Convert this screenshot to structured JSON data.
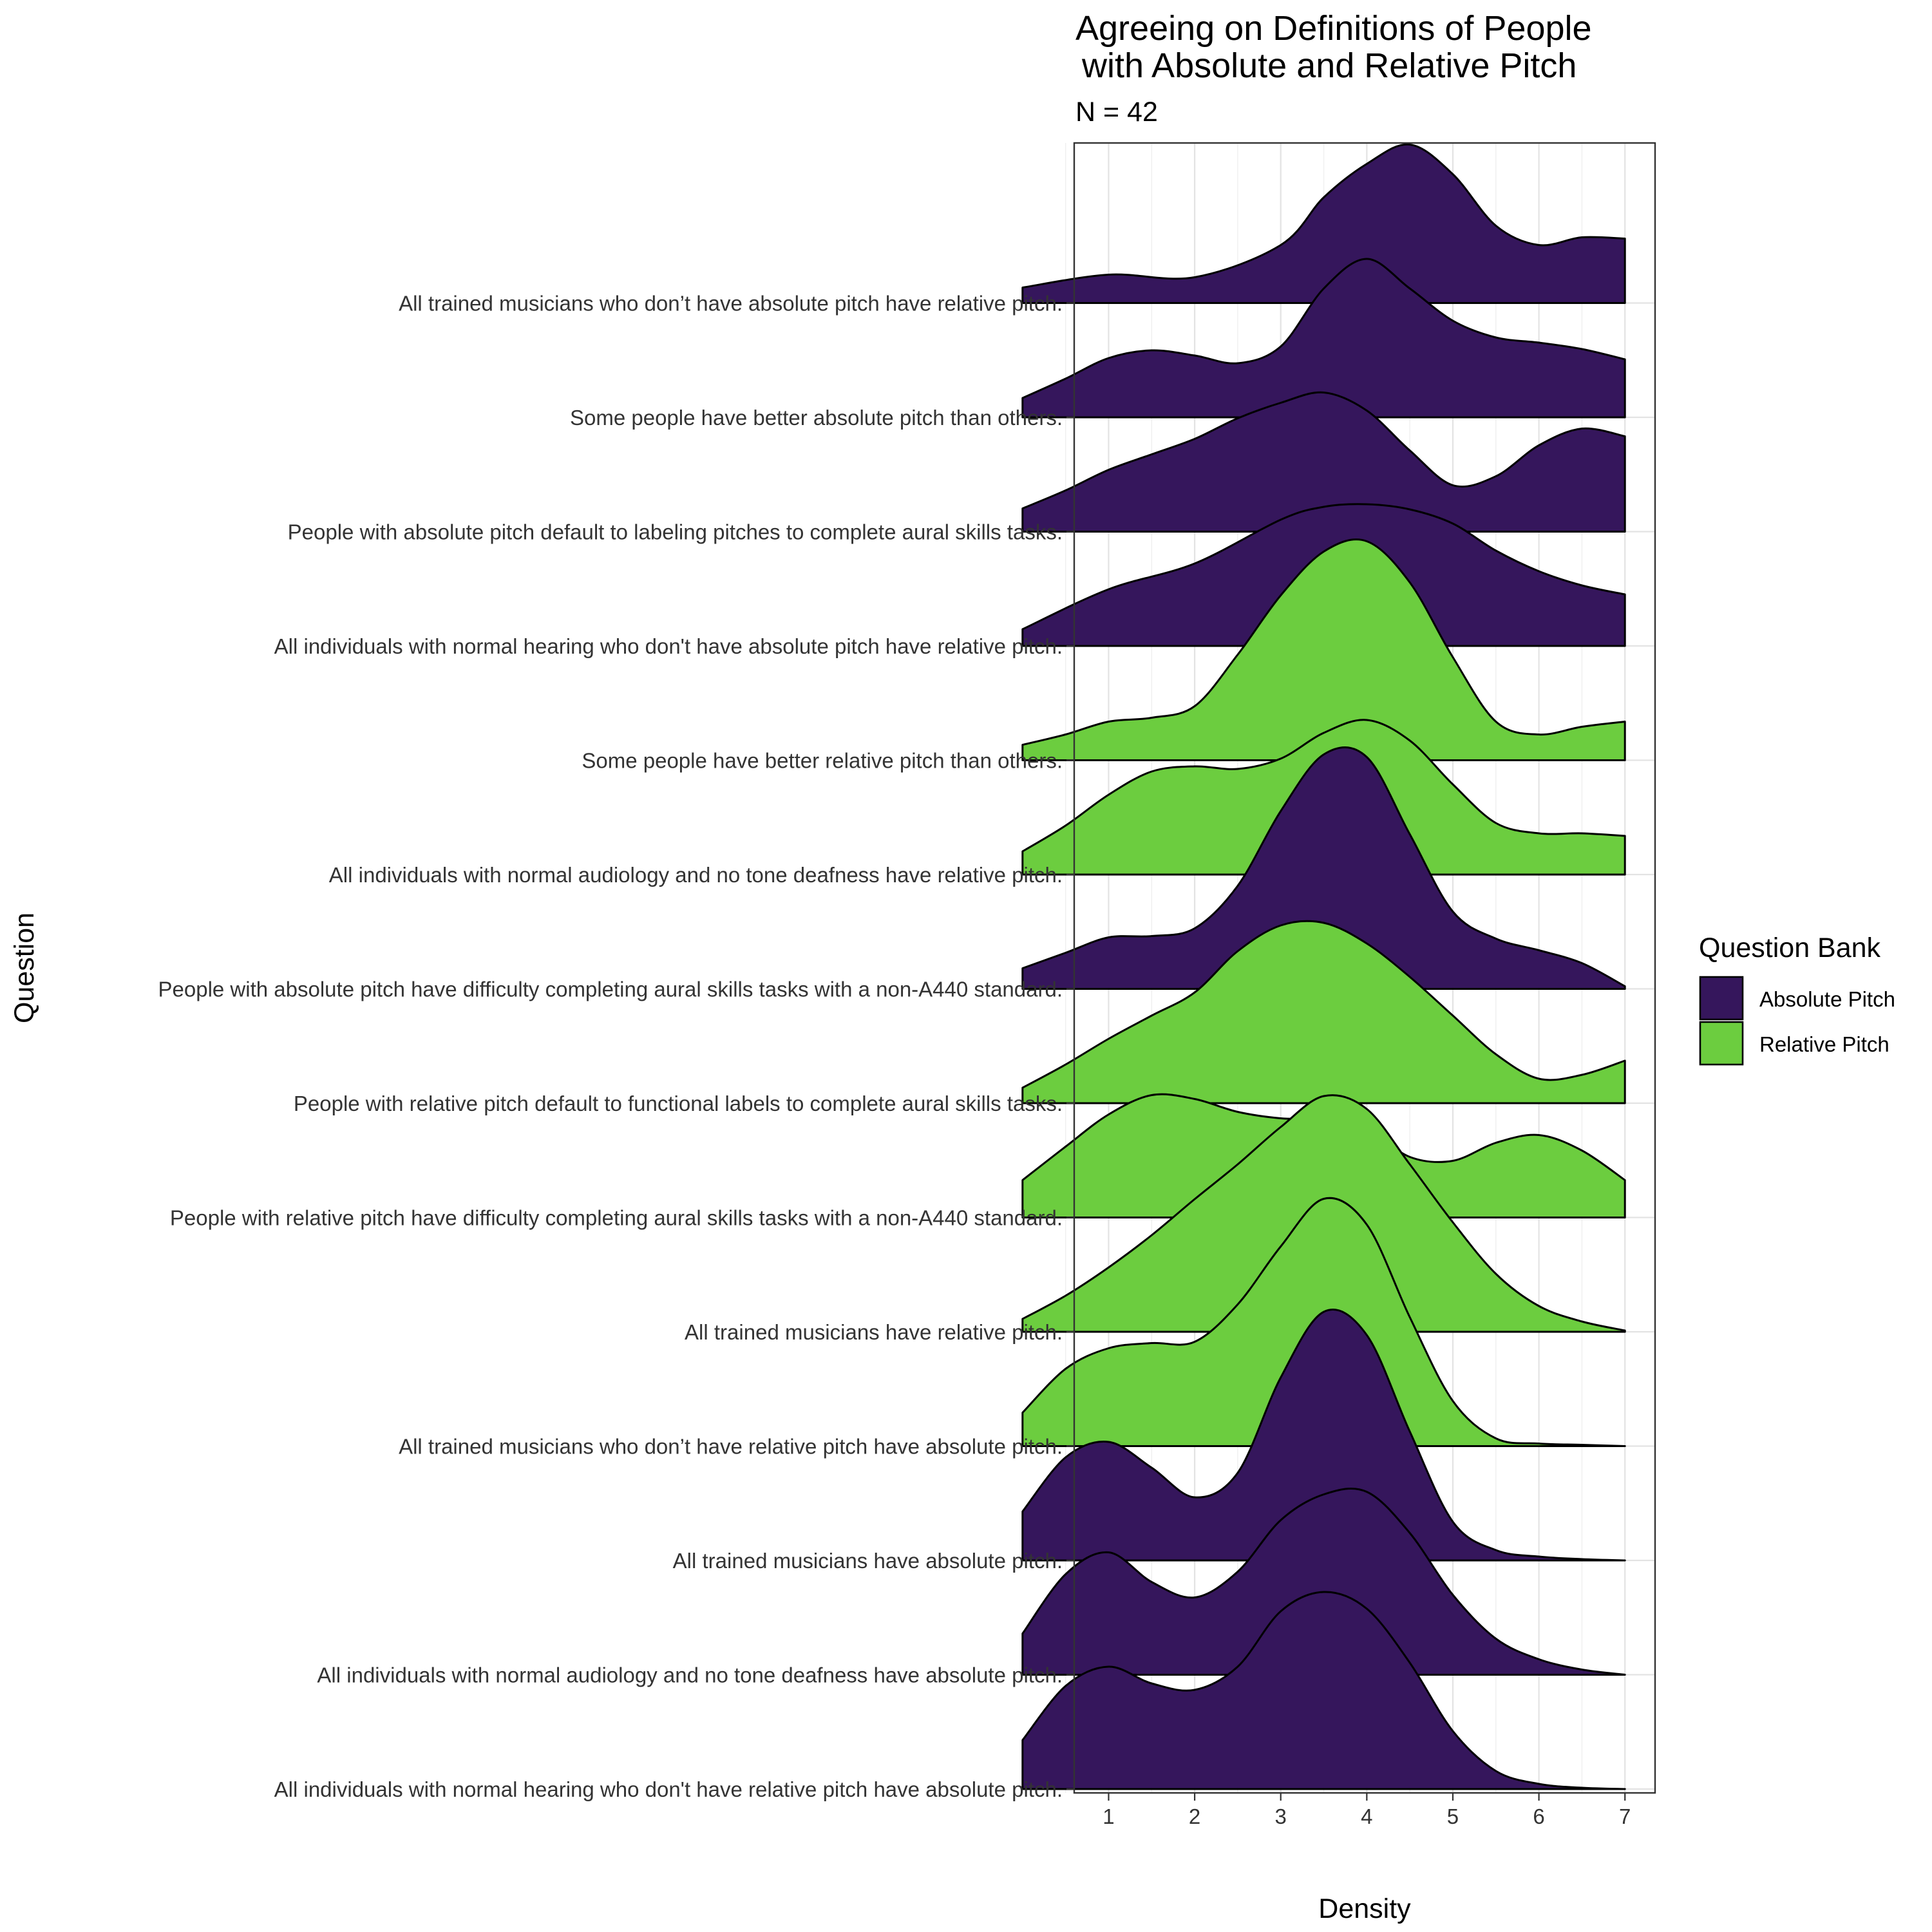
{
  "chart_data": {
    "type": "ridgeline",
    "title_lines": [
      "Agreeing on Definitions of People",
      "with Absolute and Relative Pitch"
    ],
    "subtitle": "N = 42",
    "xlabel": "Density",
    "ylabel": "Question",
    "xlim": [
      0.6,
      7.35
    ],
    "xticks": [
      1,
      2,
      3,
      4,
      5,
      6,
      7
    ],
    "grid": true,
    "legend": {
      "title": "Question Bank",
      "position": "right",
      "items": [
        {
          "label": "Absolute Pitch",
          "color": "#35165c"
        },
        {
          "label": "Relative Pitch",
          "color": "#6ccd3f"
        }
      ]
    },
    "series": [
      {
        "label": "All trained musicians who don’t have absolute pitch have relative pitch.",
        "bank": "Absolute Pitch",
        "x": [
          0,
          1,
          2,
          3,
          3.5,
          4,
          4.5,
          5,
          5.5,
          6,
          6.5,
          7
        ],
        "density": [
          0.12,
          0.22,
          0.2,
          0.45,
          0.82,
          1.08,
          1.23,
          1.0,
          0.6,
          0.45,
          0.51,
          0.5
        ]
      },
      {
        "label": "Some people have better absolute pitch than others.",
        "bank": "Absolute Pitch",
        "x": [
          0,
          0.5,
          1,
          1.5,
          2,
          2.5,
          3,
          3.5,
          4,
          4.5,
          5,
          5.5,
          6,
          6.5,
          7
        ],
        "density": [
          0.15,
          0.3,
          0.46,
          0.52,
          0.48,
          0.42,
          0.55,
          1.0,
          1.23,
          1.0,
          0.75,
          0.62,
          0.58,
          0.53,
          0.45
        ]
      },
      {
        "label": "People with absolute pitch default to labeling pitches to complete aural skills tasks.",
        "bank": "Absolute Pitch",
        "x": [
          0,
          0.5,
          1,
          1.5,
          2,
          2.5,
          3,
          3.5,
          4,
          4.5,
          5,
          5.5,
          6,
          6.5,
          7
        ],
        "density": [
          0.18,
          0.32,
          0.48,
          0.6,
          0.72,
          0.88,
          1.0,
          1.08,
          0.94,
          0.63,
          0.36,
          0.43,
          0.67,
          0.8,
          0.74
        ]
      },
      {
        "label": "All individuals with normal hearing who don't have absolute pitch have relative pitch.",
        "bank": "Absolute Pitch",
        "x": [
          0,
          1,
          2,
          3,
          3.5,
          4,
          4.5,
          5,
          5.5,
          6,
          6.5,
          7
        ],
        "density": [
          0.13,
          0.44,
          0.64,
          0.98,
          1.08,
          1.1,
          1.06,
          0.95,
          0.74,
          0.58,
          0.47,
          0.4
        ]
      },
      {
        "label": "Some people have better relative pitch than others.",
        "bank": "Relative Pitch",
        "x": [
          0,
          0.5,
          1,
          1.5,
          2,
          2.5,
          3,
          3.5,
          4,
          4.5,
          5,
          5.5,
          6,
          6.5,
          7
        ],
        "density": [
          0.12,
          0.2,
          0.3,
          0.33,
          0.42,
          0.82,
          1.28,
          1.62,
          1.7,
          1.38,
          0.8,
          0.3,
          0.2,
          0.26,
          0.3
        ]
      },
      {
        "label": "All individuals with normal audiology and no tone deafness have relative pitch.",
        "bank": "Relative Pitch",
        "x": [
          0,
          0.5,
          1,
          1.5,
          2,
          2.5,
          3,
          3.5,
          4,
          4.5,
          5,
          5.5,
          6,
          6.5,
          7
        ],
        "density": [
          0.18,
          0.38,
          0.62,
          0.8,
          0.84,
          0.82,
          0.9,
          1.1,
          1.2,
          1.04,
          0.7,
          0.4,
          0.32,
          0.32,
          0.3
        ]
      },
      {
        "label": "People with absolute pitch have difficulty completing aural skills tasks with a non-A440 standard.",
        "bank": "Absolute Pitch",
        "x": [
          0,
          0.5,
          1,
          1.5,
          2,
          2.5,
          3,
          3.5,
          4,
          4.5,
          5,
          5.5,
          6,
          6.5,
          7
        ],
        "density": [
          0.16,
          0.28,
          0.4,
          0.41,
          0.47,
          0.8,
          1.38,
          1.82,
          1.8,
          1.2,
          0.6,
          0.39,
          0.3,
          0.2,
          0.02
        ]
      },
      {
        "label": "People with relative pitch default to functional labels to complete aural skills tasks.",
        "bank": "Relative Pitch",
        "x": [
          0,
          0.5,
          1,
          1.5,
          2,
          2.5,
          3,
          3.5,
          4,
          4.5,
          5,
          5.5,
          6,
          6.5,
          7
        ],
        "density": [
          0.12,
          0.3,
          0.5,
          0.68,
          0.86,
          1.18,
          1.38,
          1.4,
          1.24,
          0.98,
          0.68,
          0.38,
          0.19,
          0.22,
          0.33
        ]
      },
      {
        "label": "People with relative pitch have difficulty completing aural skills tasks with a non-A440 standard.",
        "bank": "Relative Pitch",
        "x": [
          0,
          0.5,
          1,
          1.5,
          2,
          2.5,
          3,
          3.5,
          4,
          4.5,
          5,
          5.5,
          6,
          6.5,
          7
        ],
        "density": [
          0.29,
          0.55,
          0.8,
          0.95,
          0.92,
          0.82,
          0.77,
          0.76,
          0.69,
          0.47,
          0.44,
          0.58,
          0.64,
          0.52,
          0.29
        ]
      },
      {
        "label": "All trained musicians have relative pitch.",
        "bank": "Relative Pitch",
        "x": [
          0,
          0.5,
          1,
          1.5,
          2,
          2.5,
          3,
          3.5,
          4,
          4.5,
          5,
          5.5,
          6,
          6.5,
          7
        ],
        "density": [
          0.1,
          0.28,
          0.5,
          0.75,
          1.03,
          1.3,
          1.59,
          1.83,
          1.73,
          1.3,
          0.85,
          0.45,
          0.2,
          0.08,
          0.01
        ]
      },
      {
        "label": "All trained musicians who don’t have relative pitch have absolute pitch.",
        "bank": "Relative Pitch",
        "x": [
          0,
          0.5,
          1,
          1.5,
          2,
          2.5,
          3,
          3.5,
          4,
          4.5,
          5,
          5.5,
          6,
          6.5,
          7
        ],
        "density": [
          0.26,
          0.6,
          0.76,
          0.8,
          0.81,
          1.1,
          1.55,
          1.92,
          1.72,
          1.0,
          0.35,
          0.06,
          0.02,
          0.01,
          0.0
        ]
      },
      {
        "label": "All trained musicians have absolute pitch.",
        "bank": "Absolute Pitch",
        "x": [
          0,
          0.5,
          1,
          1.5,
          2,
          2.5,
          3,
          3.5,
          4,
          4.5,
          5,
          5.5,
          6,
          6.5,
          7
        ],
        "density": [
          0.38,
          0.8,
          0.92,
          0.72,
          0.49,
          0.68,
          1.42,
          1.93,
          1.75,
          1.0,
          0.3,
          0.08,
          0.03,
          0.01,
          0.0
        ]
      },
      {
        "label": "All individuals with normal audiology and no tone deafness have absolute pitch.",
        "bank": "Absolute Pitch",
        "x": [
          0,
          0.5,
          1,
          1.5,
          2,
          2.5,
          3,
          3.5,
          4,
          4.5,
          5,
          5.5,
          6,
          6.5,
          7
        ],
        "density": [
          0.32,
          0.78,
          0.95,
          0.72,
          0.6,
          0.8,
          1.2,
          1.4,
          1.42,
          1.1,
          0.62,
          0.28,
          0.12,
          0.04,
          0.0
        ]
      },
      {
        "label": "All individuals with normal hearing who don't have relative pitch have absolute pitch.",
        "bank": "Absolute Pitch",
        "x": [
          0,
          0.5,
          1,
          1.5,
          2,
          2.5,
          3,
          3.5,
          4,
          4.5,
          5,
          5.5,
          6,
          6.5,
          7
        ],
        "density": [
          0.38,
          0.8,
          0.95,
          0.82,
          0.77,
          0.95,
          1.38,
          1.53,
          1.4,
          0.98,
          0.45,
          0.14,
          0.04,
          0.01,
          0.0
        ]
      }
    ]
  }
}
